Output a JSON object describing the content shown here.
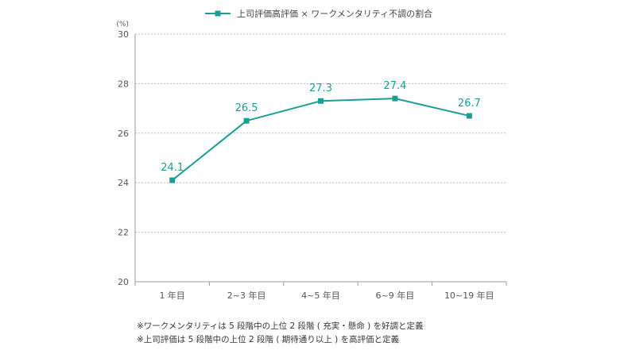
{
  "chart_data": {
    "type": "line",
    "title": "",
    "xlabel": "",
    "ylabel": "(%)",
    "categories": [
      "1 年目",
      "2~3 年目",
      "4~5 年目",
      "6~9 年目",
      "10~19 年目"
    ],
    "series": [
      {
        "name": "上司評価高評価 × ワークメンタリティ不調の割合",
        "values": [
          24.1,
          26.5,
          27.3,
          27.4,
          26.7
        ],
        "value_labels": [
          "24.1",
          "26.5",
          "27.3",
          "27.4",
          "26.7"
        ],
        "color": "#1a9e96"
      }
    ],
    "ylim": [
      20,
      30
    ],
    "yticks": [
      20,
      22,
      24,
      26,
      28,
      30
    ],
    "grid": true,
    "legend_position": "top-center"
  },
  "notes": [
    "※ワークメンタリティは 5 段階中の上位 2 段階 ( 充実・懸命 ) を好調と定義",
    "※上司評価は 5 段階中の上位 2 段階 ( 期待通り以上 ) を高評価と定義"
  ],
  "colors": {
    "series": "#1a9e96",
    "grid": "#bbbbbb",
    "axis": "#999999"
  }
}
